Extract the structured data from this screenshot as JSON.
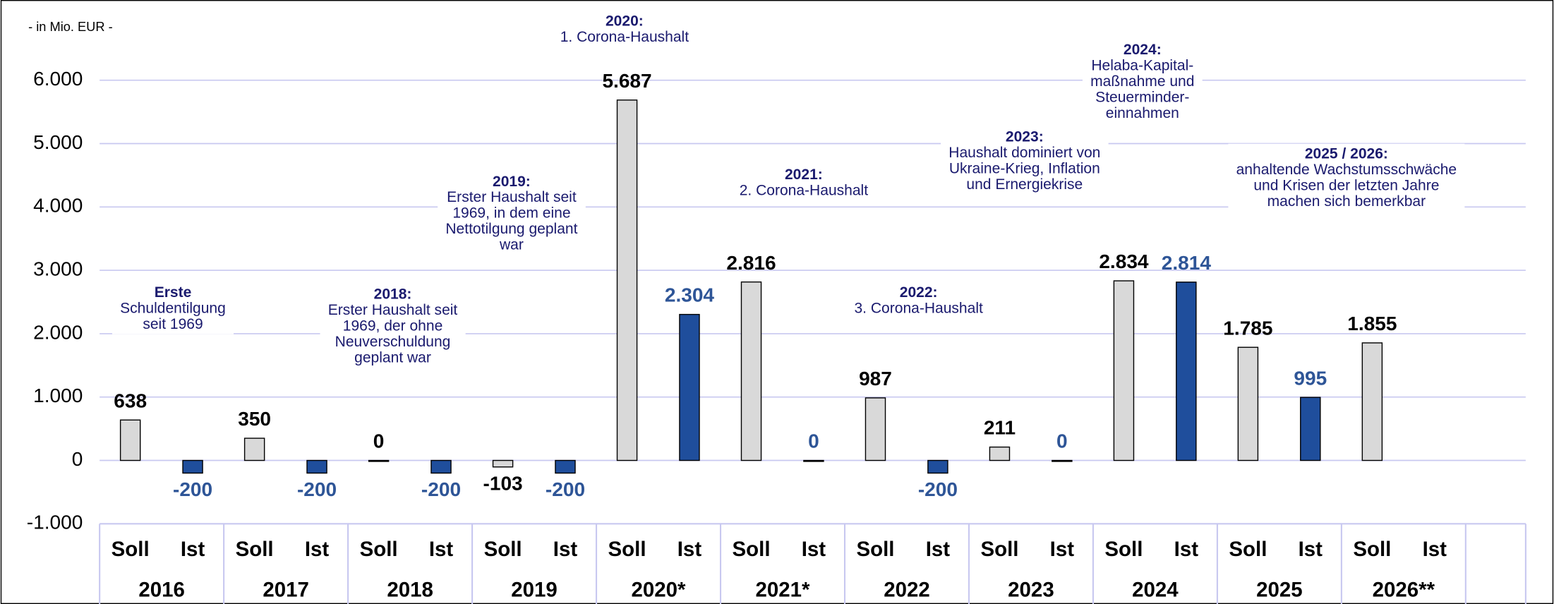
{
  "chart_data": {
    "type": "bar",
    "unit_label": "- in Mio. EUR -",
    "categories": [
      "2016",
      "2017",
      "2018",
      "2019",
      "2020*",
      "2021*",
      "2022",
      "2023",
      "2024",
      "2025",
      "2026**"
    ],
    "series": [
      {
        "name": "Soll",
        "color": "#d9d9d9",
        "label_color": "#000000",
        "values": [
          638,
          350,
          0,
          -103,
          5687,
          2816,
          987,
          211,
          2834,
          1785,
          1855
        ],
        "value_labels": [
          "638",
          "350",
          "0",
          "-103",
          "5.687",
          "2.816",
          "987",
          "211",
          "2.834",
          "1.785",
          "1.855"
        ]
      },
      {
        "name": "Ist",
        "color": "#1f4e9c",
        "label_color": "#2e5597",
        "values": [
          -200,
          -200,
          -200,
          -200,
          2304,
          0,
          -200,
          0,
          2814,
          995,
          null
        ],
        "value_labels": [
          "-200",
          "-200",
          "-200",
          "-200",
          "2.304",
          "0",
          "-200",
          "0",
          "2.814",
          "995",
          null
        ]
      }
    ],
    "ylim": [
      -1000,
      6000
    ],
    "yticks": [
      {
        "value": -1000,
        "label": "-1.000"
      },
      0,
      {
        "value": 1000,
        "label": "1.000"
      },
      {
        "value": 2000,
        "label": "2.000"
      },
      {
        "value": 3000,
        "label": "3.000"
      },
      {
        "value": 4000,
        "label": "4.000"
      },
      {
        "value": 5000,
        "label": "5.000"
      },
      {
        "value": 6000,
        "label": "6.000"
      }
    ],
    "grid": true,
    "annotations": [
      {
        "title": "Erste",
        "lines": [
          "Schuldentilgung",
          "seit 1969"
        ]
      },
      {
        "title": "2018:",
        "lines": [
          "Erster Haushalt seit",
          "1969, der ohne",
          "Neuverschuldung",
          "geplant war"
        ]
      },
      {
        "title": "2019:",
        "lines": [
          "Erster Haushalt seit",
          "1969, in dem eine",
          "Nettotilgung geplant",
          "war"
        ]
      },
      {
        "title": "2020:",
        "lines": [
          "1. Corona-Haushalt"
        ]
      },
      {
        "title": "2021:",
        "lines": [
          "2. Corona-Haushalt"
        ]
      },
      {
        "title": "2022:",
        "lines": [
          "3. Corona-Haushalt"
        ]
      },
      {
        "title": "2023:",
        "lines": [
          "Haushalt dominiert von",
          "Ukraine-Krieg, Inflation",
          "und Ernergiekrise"
        ]
      },
      {
        "title": "2024:",
        "lines": [
          "Helaba-Kapital-",
          "maßnahme und",
          "Steuerminder-",
          "einnahmen"
        ]
      },
      {
        "title": "2025 / 2026:",
        "lines": [
          "anhaltende Wachstumsschwäche",
          "und Krisen der letzten Jahre",
          "machen sich bemerkbar"
        ]
      }
    ]
  }
}
